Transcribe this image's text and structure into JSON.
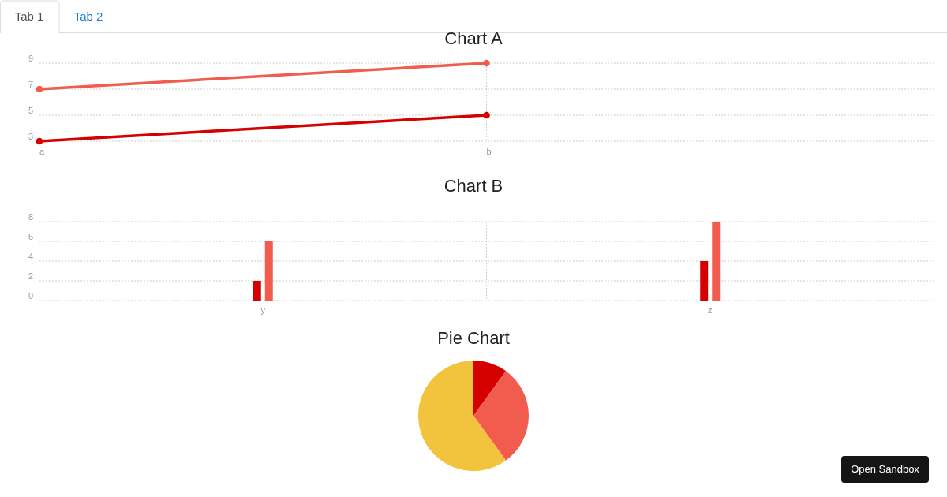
{
  "chart_data": [
    {
      "type": "other",
      "annotations": [
        "Tab 1",
        "Tab 2",
        "Open Sandbox"
      ]
    },
    {
      "type": "line",
      "title": "Chart A",
      "categories": [
        "a",
        "b",
        null
      ],
      "ylim": [
        3,
        9
      ],
      "yticks": [
        3,
        5,
        7,
        9
      ],
      "grid": true,
      "marker": "circle",
      "series": [
        {
          "color": "#d50000",
          "values": [
            3,
            5,
            null
          ]
        },
        {
          "color": "#f15c4f",
          "values": [
            7,
            9,
            null
          ]
        }
      ]
    },
    {
      "type": "bar",
      "title": "Chart B",
      "categories": [
        "y",
        "z"
      ],
      "ylim": [
        0,
        8
      ],
      "yticks": [
        0,
        2,
        4,
        6,
        8
      ],
      "grid": true,
      "series": [
        {
          "color": "#d50000",
          "values": [
            2,
            4
          ]
        },
        {
          "color": "#f15c4f",
          "values": [
            6,
            8
          ]
        }
      ]
    },
    {
      "type": "pie",
      "title": "Pie Chart",
      "categories": [
        null,
        null,
        null
      ],
      "values": [
        10,
        30,
        60
      ],
      "colors": [
        "#d50000",
        "#f15c4f",
        "#f2c43d"
      ]
    }
  ]
}
